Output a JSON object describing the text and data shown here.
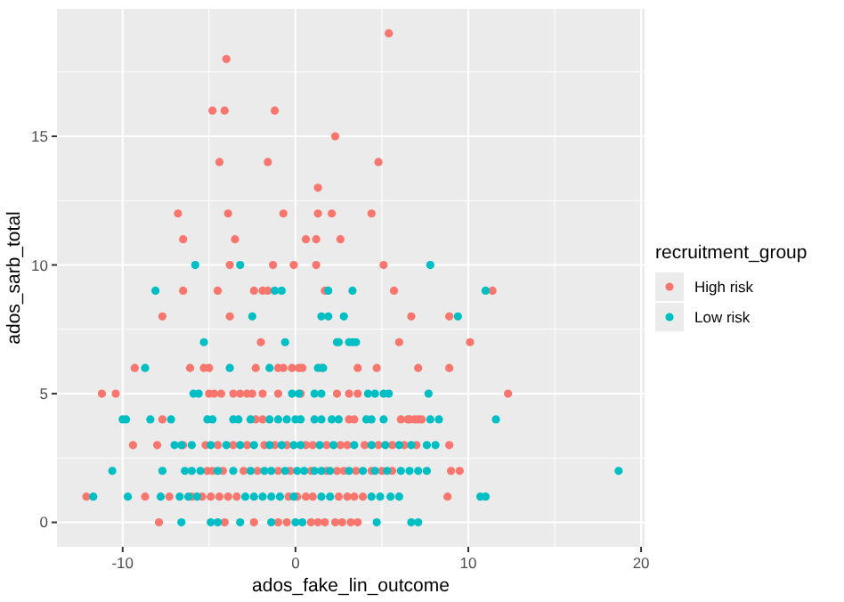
{
  "chart_data": {
    "type": "scatter",
    "xlabel": "ados_fake_lin_outcome",
    "ylabel": "ados_sarb_total",
    "legend_title": "recruitment_group",
    "legend": "right",
    "grid": true,
    "marker": "circle",
    "xlim": [
      -13.8,
      20.2
    ],
    "xticks": [
      -10,
      0,
      10,
      20
    ],
    "ylim": [
      -0.95,
      19.95
    ],
    "yticks": [
      0,
      5,
      10,
      15
    ],
    "series": [
      {
        "name": "High risk",
        "color": "#f8766d",
        "x": [
          5.4,
          -4.0,
          -4.8,
          -4.1,
          -1.2,
          2.3,
          -4.4,
          -1.6,
          4.8,
          1.3,
          -6.8,
          -3.9,
          -0.7,
          1.3,
          2.1,
          4.4,
          -6.5,
          -3.5,
          0.6,
          1.2,
          2.6,
          -3.8,
          -1.3,
          -0.1,
          1.2,
          5.1,
          -6.5,
          -4.5,
          -2.4,
          -1.9,
          -1.6,
          1.7,
          5.7,
          11.4,
          -7.7,
          -3.8,
          6.7,
          8.9,
          -2.0,
          6.0,
          10.1,
          -9.3,
          -6.1,
          -5.3,
          -5.0,
          -2.3,
          -1.0,
          -0.7,
          -0.2,
          0.2,
          0.4,
          1.5,
          3.6,
          4.7,
          7.1,
          8.9,
          -11.2,
          -10.4,
          -5.0,
          -4.7,
          -4.3,
          -3.6,
          -3.2,
          -2.8,
          -2.5,
          -1.9,
          -1.0,
          0.3,
          2.4,
          3.1,
          3.6,
          12.3,
          -7.7,
          -2.3,
          -1.9,
          3.1,
          3.4,
          6.1,
          6.5,
          6.9,
          7.3,
          6.6,
          7.1,
          -9.4,
          -8.0,
          -6.5,
          -5.2,
          -4.5,
          -3.6,
          -2.8,
          -1.8,
          -1.2,
          -0.5,
          0.6,
          1.0,
          1.8,
          2.6,
          3.0,
          4.0,
          4.8,
          5.6,
          6.3,
          7.0,
          8.9,
          -5.1,
          -4.8,
          -4.2,
          -3.0,
          -2.2,
          -1.0,
          -0.3,
          0.9,
          1.8,
          2.4,
          2.8,
          3.5,
          4.4,
          5.0,
          5.6,
          9.0,
          9.5,
          -12.1,
          -8.7,
          -7.3,
          -6.0,
          -5.4,
          -4.9,
          -4.4,
          -3.9,
          -3.4,
          -0.4,
          0.1,
          0.6,
          1.0,
          2.5,
          3.0,
          3.4,
          3.9,
          8.8,
          -7.9,
          -4.1,
          -2.4,
          -1.0,
          -0.5,
          0.9,
          1.3,
          1.7,
          2.3,
          2.7,
          3.2,
          3.6
        ],
        "values": [
          19,
          18,
          16,
          16,
          16,
          15,
          14,
          14,
          14,
          13,
          12,
          12,
          12,
          12,
          12,
          12,
          11,
          11,
          11,
          11,
          11,
          10,
          10,
          10,
          10,
          10,
          9,
          9,
          9,
          9,
          9,
          9,
          9,
          9,
          8,
          8,
          8,
          8,
          7,
          7,
          7,
          6,
          6,
          6,
          6,
          6,
          6,
          6,
          6,
          6,
          6,
          6,
          6,
          6,
          6,
          6,
          5,
          5,
          5,
          5,
          5,
          5,
          5,
          5,
          5,
          5,
          5,
          5,
          5,
          5,
          5,
          5,
          4,
          4,
          4,
          4,
          4,
          4,
          4,
          4,
          4,
          4,
          4,
          3,
          3,
          3,
          3,
          3,
          3,
          3,
          3,
          3,
          3,
          3,
          3,
          3,
          3,
          3,
          3,
          3,
          3,
          3,
          3,
          3,
          2,
          2,
          2,
          2,
          2,
          2,
          2,
          2,
          2,
          2,
          2,
          2,
          2,
          2,
          2,
          2,
          2,
          1,
          1,
          1,
          1,
          1,
          1,
          1,
          1,
          1,
          1,
          1,
          1,
          1,
          1,
          1,
          1,
          1,
          1,
          0,
          0,
          0,
          0,
          0,
          0,
          0,
          0,
          0,
          0,
          0,
          0
        ]
      },
      {
        "name": "Low risk",
        "color": "#00bfc4",
        "x": [
          -5.8,
          -3.2,
          7.8,
          -8.1,
          -1.2,
          -0.8,
          1.9,
          3.3,
          11.0,
          -2.5,
          1.5,
          1.9,
          2.8,
          9.4,
          -5.3,
          -0.6,
          2.4,
          2.5,
          3.1,
          3.3,
          3.5,
          -8.7,
          -3.8,
          -1.5,
          1.3,
          1.6,
          -5.9,
          -5.6,
          -0.2,
          0.2,
          1.1,
          1.5,
          4.2,
          4.6,
          5.1,
          5.4,
          7.7,
          -10.0,
          -9.8,
          -8.4,
          -7.2,
          -5.1,
          -4.8,
          -3.6,
          -3.3,
          -2.6,
          -1.5,
          -1.0,
          -0.5,
          0.0,
          0.3,
          1.1,
          1.5,
          2.1,
          2.5,
          4.1,
          4.4,
          5.1,
          7.8,
          8.3,
          11.6,
          -7.0,
          -6.6,
          -6.0,
          -4.9,
          -4.0,
          -3.2,
          -2.4,
          -1.5,
          -0.8,
          -0.1,
          0.3,
          1.4,
          2.2,
          3.4,
          4.4,
          5.2,
          6.0,
          6.7,
          7.6,
          8.1,
          -10.6,
          -7.7,
          -6.4,
          -6.0,
          -5.5,
          -4.5,
          -3.6,
          -2.6,
          -1.8,
          -1.4,
          -0.6,
          0.1,
          0.5,
          1.1,
          1.5,
          2.0,
          3.1,
          3.9,
          4.6,
          5.3,
          6.1,
          6.6,
          7.1,
          7.6,
          18.7,
          -11.7,
          -9.7,
          -7.8,
          -6.7,
          -6.2,
          -5.7,
          -2.9,
          -2.4,
          -1.9,
          -1.4,
          -0.9,
          -0.1,
          1.5,
          2.0,
          4.4,
          4.9,
          5.5,
          6.0,
          10.7,
          11.0,
          -6.6,
          -4.9,
          -4.5,
          -3.2,
          -1.4,
          0.0,
          0.4,
          4.7,
          6.7,
          7.1
        ],
        "values": [
          10,
          10,
          10,
          9,
          9,
          9,
          9,
          9,
          9,
          8,
          8,
          8,
          8,
          8,
          7,
          7,
          7,
          7,
          7,
          7,
          7,
          6,
          6,
          6,
          6,
          6,
          5,
          5,
          5,
          5,
          5,
          5,
          5,
          5,
          5,
          5,
          5,
          4,
          4,
          4,
          4,
          4,
          4,
          4,
          4,
          4,
          4,
          4,
          4,
          4,
          4,
          4,
          4,
          4,
          4,
          4,
          4,
          4,
          4,
          4,
          4,
          3,
          3,
          3,
          3,
          3,
          3,
          3,
          3,
          3,
          3,
          3,
          3,
          3,
          3,
          3,
          3,
          3,
          3,
          3,
          3,
          2,
          2,
          2,
          2,
          2,
          2,
          2,
          2,
          2,
          2,
          2,
          2,
          2,
          2,
          2,
          2,
          2,
          2,
          2,
          2,
          2,
          2,
          2,
          2,
          2,
          1,
          1,
          1,
          1,
          1,
          1,
          1,
          1,
          1,
          1,
          1,
          1,
          1,
          1,
          1,
          1,
          1,
          1,
          1,
          1,
          0,
          0,
          0,
          0,
          0,
          0,
          0,
          0,
          0,
          0
        ]
      }
    ]
  }
}
